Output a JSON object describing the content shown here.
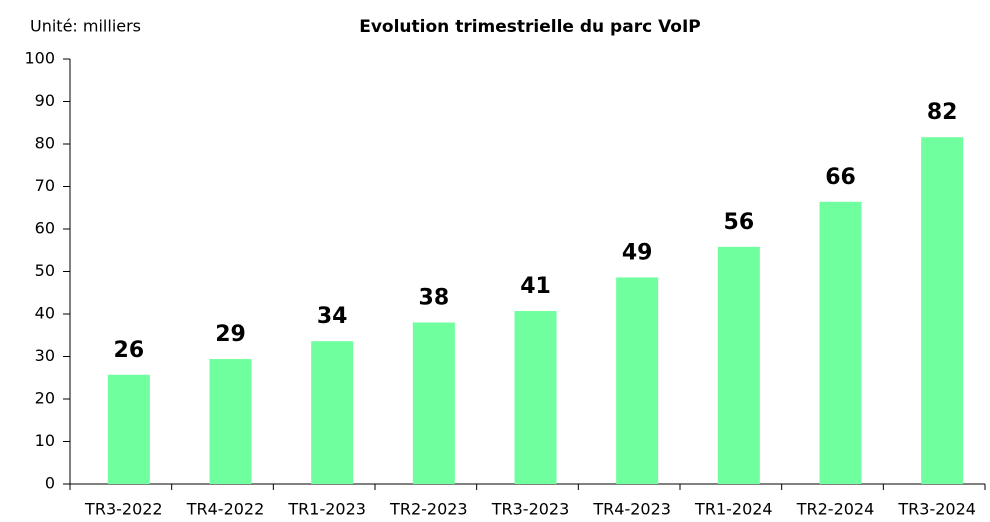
{
  "chart_data": {
    "type": "bar",
    "title": "Evolution trimestrielle du parc VoIP",
    "unit_label": "Unité: milliers",
    "categories": [
      "TR3-2022",
      "TR4-2022",
      "TR1-2023",
      "TR2-2023",
      "TR3-2023",
      "TR4-2023",
      "TR1-2024",
      "TR2-2024",
      "TR3-2024"
    ],
    "values": [
      25.7,
      29.4,
      33.6,
      38,
      40.7,
      48.6,
      55.8,
      66.4,
      81.6
    ],
    "value_labels": [
      "26",
      "29",
      "34",
      "38",
      "41",
      "49",
      "56",
      "66",
      "82"
    ],
    "color": "#70ff9f",
    "ylim": [
      0,
      100
    ],
    "yticks": [
      0,
      10,
      20,
      30,
      40,
      50,
      60,
      70,
      80,
      90,
      100
    ],
    "grid": false
  }
}
